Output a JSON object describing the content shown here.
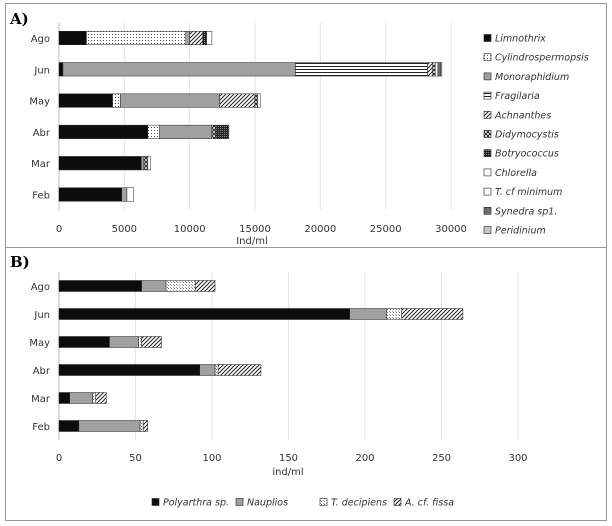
{
  "panels": [
    {
      "label": "A)",
      "chart_data": {
        "type": "bar",
        "orientation": "horizontal",
        "stacked": true,
        "categories": [
          "Feb",
          "Mar",
          "Abr",
          "May",
          "Jun",
          "Ago"
        ],
        "xlabel": "Ind/ml",
        "xlim": [
          0,
          30000
        ],
        "xticks": [
          0,
          5000,
          10000,
          15000,
          20000,
          25000,
          30000
        ],
        "grid": true,
        "legend_position": "right",
        "series": [
          {
            "name": "Limnothrix",
            "fill": "black",
            "values": [
              4800,
              6300,
              6800,
              4100,
              300,
              2100
            ]
          },
          {
            "name": "Cylindrospermopsis",
            "fill": "dots-fine",
            "values": [
              0,
              0,
              900,
              600,
              0,
              7600
            ]
          },
          {
            "name": "Monoraphidium",
            "fill": "gray",
            "values": [
              400,
              200,
              4000,
              7600,
              17800,
              300
            ]
          },
          {
            "name": "Fragilaria",
            "fill": "hlines",
            "values": [
              0,
              0,
              0,
              0,
              10100,
              0
            ]
          },
          {
            "name": "Achnanthes",
            "fill": "diag",
            "values": [
              0,
              0,
              0,
              2700,
              400,
              1000
            ]
          },
          {
            "name": "Didymocystis",
            "fill": "checker",
            "values": [
              0,
              300,
              300,
              200,
              200,
              0
            ]
          },
          {
            "name": "Botryococcus",
            "fill": "dots-dark",
            "values": [
              0,
              0,
              1000,
              0,
              0,
              300
            ]
          },
          {
            "name": "Chlorella",
            "fill": "white",
            "values": [
              0,
              0,
              0,
              0,
              200,
              0
            ]
          },
          {
            "name": "T. cf minimum",
            "fill": "white",
            "values": [
              500,
              200,
              0,
              200,
              0,
              400
            ]
          },
          {
            "name": "Synedra sp1.",
            "fill": "gray-dark",
            "values": [
              0,
              0,
              0,
              0,
              200,
              0
            ]
          },
          {
            "name": "Peridinium",
            "fill": "gray-light",
            "values": [
              0,
              0,
              0,
              0,
              100,
              0
            ]
          }
        ]
      }
    },
    {
      "label": "B)",
      "chart_data": {
        "type": "bar",
        "orientation": "horizontal",
        "stacked": true,
        "categories": [
          "Feb",
          "Mar",
          "Abr",
          "May",
          "Jun",
          "Ago"
        ],
        "xlabel": "ind/ml",
        "xlim": [
          0,
          300
        ],
        "xticks": [
          0,
          50,
          100,
          150,
          200,
          250,
          300
        ],
        "grid": true,
        "legend_position": "bottom",
        "series": [
          {
            "name": "Polyarthra sp.",
            "fill": "black",
            "values": [
              13,
              7,
              92,
              33,
              190,
              54
            ]
          },
          {
            "name": "Nauplios",
            "fill": "gray",
            "values": [
              40,
              15,
              10,
              19,
              24,
              16
            ]
          },
          {
            "name": "T. decipiens",
            "fill": "dots",
            "values": [
              2,
              2,
              2,
              2,
              10,
              19
            ]
          },
          {
            "name": "A. cf. fissa",
            "fill": "diag",
            "values": [
              3,
              7,
              28,
              13,
              40,
              13
            ]
          }
        ]
      }
    }
  ]
}
